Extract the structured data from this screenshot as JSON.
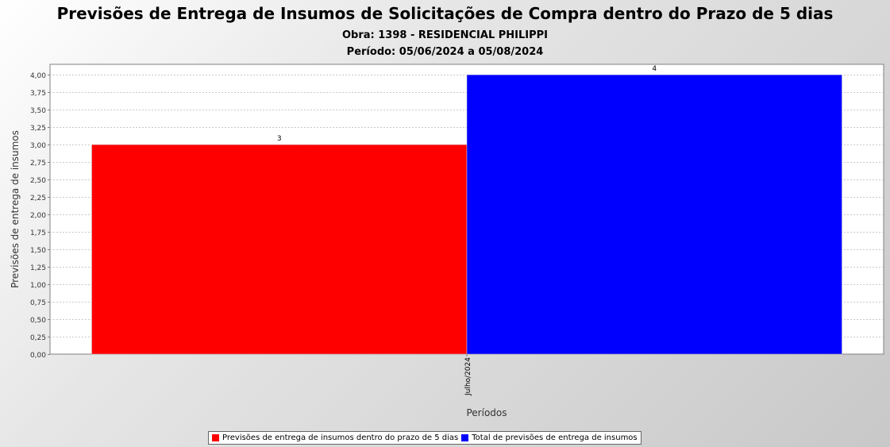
{
  "header": {
    "title": "Previsões de Entrega de Insumos de Solicitações de Compra dentro do Prazo de 5 dias",
    "subtitle1": "Obra: 1398 - RESIDENCIAL PHILIPPI",
    "subtitle2": "Período: 05/06/2024 a 05/08/2024"
  },
  "chart_data": {
    "type": "bar",
    "categories": [
      "Julho/2024"
    ],
    "series": [
      {
        "name": "Previsões de entrega de insumos dentro do prazo de 5 dias",
        "values": [
          3
        ],
        "color": "#ff0000"
      },
      {
        "name": "Total de previsões de entrega de insumos",
        "values": [
          4
        ],
        "color": "#0000ff"
      }
    ],
    "data_labels": [
      "3",
      "4"
    ],
    "xlabel": "Períodos",
    "ylabel": "Previsões de entrega de insumos",
    "ylim": [
      0,
      4.15
    ],
    "yticks": [
      "0,00",
      "0,25",
      "0,50",
      "0,75",
      "1,00",
      "1,25",
      "1,50",
      "1,75",
      "2,00",
      "2,25",
      "2,50",
      "2,75",
      "3,00",
      "3,25",
      "3,50",
      "3,75",
      "4,00"
    ],
    "grid": true,
    "legend_position": "bottom"
  }
}
